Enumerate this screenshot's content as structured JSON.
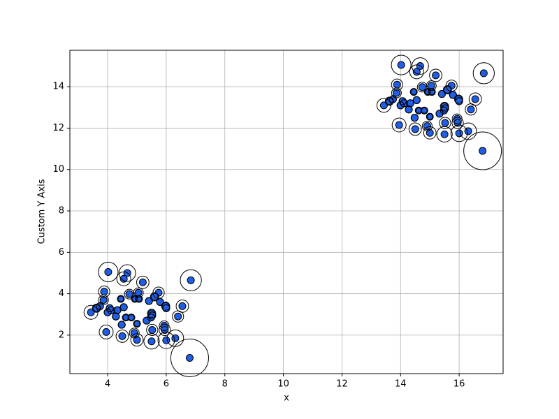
{
  "chart_data": {
    "type": "scatter",
    "xlabel": "x",
    "ylabel": "Custom Y Axis",
    "xlim": [
      2.71,
      17.5
    ],
    "ylim": [
      0.14,
      15.76
    ],
    "xticks": [
      4,
      6,
      8,
      10,
      12,
      14,
      16
    ],
    "yticks": [
      2,
      4,
      6,
      8,
      10,
      12,
      14
    ],
    "grid": true,
    "ring_color": "#000000",
    "x": [
      4.02,
      4.67,
      4.55,
      6.84,
      5.2,
      3.88,
      4.74,
      5.05,
      5.74,
      3.86,
      4.45,
      4.93,
      5.07,
      5.6,
      5.41,
      5.79,
      5.98,
      6.0,
      6.55,
      3.74,
      3.62,
      3.43,
      4.07,
      4.12,
      4.0,
      4.33,
      4.55,
      4.28,
      4.62,
      4.81,
      5.5,
      5.52,
      5.48,
      5.33,
      5.0,
      4.48,
      6.4,
      5.93,
      5.95,
      5.52,
      3.95,
      4.91,
      4.5,
      5.0,
      5.5,
      6.0,
      6.31,
      6.8,
      14.02,
      14.67,
      14.55,
      16.84,
      15.2,
      13.88,
      14.74,
      15.05,
      15.74,
      13.86,
      14.45,
      14.93,
      15.07,
      15.6,
      15.41,
      15.79,
      15.98,
      16.0,
      16.55,
      13.74,
      13.62,
      13.43,
      14.07,
      14.12,
      14.0,
      14.33,
      14.55,
      14.28,
      14.62,
      14.81,
      15.5,
      15.52,
      15.48,
      15.33,
      15.0,
      14.48,
      16.4,
      15.93,
      15.95,
      15.52,
      13.95,
      14.91,
      14.5,
      15.0,
      15.5,
      16.0,
      16.31,
      16.8
    ],
    "series": [
      {
        "color": "#1f5fe8",
        "values": [
          5.05,
          5.0,
          4.72,
          4.65,
          4.55,
          4.1,
          3.98,
          4.05,
          4.05,
          3.7,
          3.75,
          3.75,
          3.75,
          3.85,
          3.65,
          3.6,
          3.4,
          3.3,
          3.4,
          3.4,
          3.3,
          3.1,
          3.3,
          3.2,
          3.1,
          3.2,
          3.35,
          2.9,
          2.85,
          2.85,
          3.05,
          2.95,
          2.85,
          2.7,
          2.55,
          2.5,
          2.9,
          2.45,
          2.25,
          2.25,
          2.15,
          2.1,
          1.95,
          1.77,
          1.7,
          1.75,
          1.85,
          0.9,
          15.05,
          15.0,
          14.72,
          14.65,
          14.55,
          14.1,
          13.98,
          14.05,
          14.05,
          13.7,
          13.75,
          13.75,
          13.75,
          13.85,
          13.65,
          13.6,
          13.4,
          13.3,
          13.4,
          13.4,
          13.3,
          13.1,
          13.3,
          13.2,
          13.1,
          13.2,
          13.35,
          12.9,
          12.85,
          12.85,
          13.05,
          12.95,
          12.85,
          12.7,
          12.55,
          12.5,
          12.9,
          12.45,
          12.25,
          12.25,
          12.15,
          12.1,
          11.95,
          11.77,
          11.7,
          11.75,
          11.85,
          10.9
        ],
        "scores": [
          0.52,
          0.44,
          0.37,
          0.56,
          0.33,
          0.3,
          0.26,
          0.26,
          0.3,
          0.26,
          0.15,
          0.15,
          0.15,
          0.22,
          0.19,
          0.19,
          0.22,
          0.19,
          0.33,
          0.19,
          0.22,
          0.37,
          0.19,
          0.19,
          0.19,
          0.19,
          0.19,
          0.19,
          0.15,
          0.15,
          0.22,
          0.19,
          0.19,
          0.19,
          0.15,
          0.19,
          0.3,
          0.26,
          0.3,
          0.3,
          0.37,
          0.26,
          0.33,
          0.33,
          0.41,
          0.44,
          0.44,
          1.0,
          0.52,
          0.44,
          0.37,
          0.56,
          0.33,
          0.3,
          0.26,
          0.26,
          0.3,
          0.26,
          0.15,
          0.15,
          0.15,
          0.22,
          0.19,
          0.19,
          0.22,
          0.19,
          0.33,
          0.19,
          0.22,
          0.37,
          0.19,
          0.19,
          0.19,
          0.19,
          0.19,
          0.19,
          0.15,
          0.15,
          0.22,
          0.19,
          0.19,
          0.19,
          0.15,
          0.19,
          0.3,
          0.26,
          0.3,
          0.3,
          0.37,
          0.26,
          0.33,
          0.33,
          0.41,
          0.44,
          0.44,
          1.0
        ]
      }
    ]
  }
}
